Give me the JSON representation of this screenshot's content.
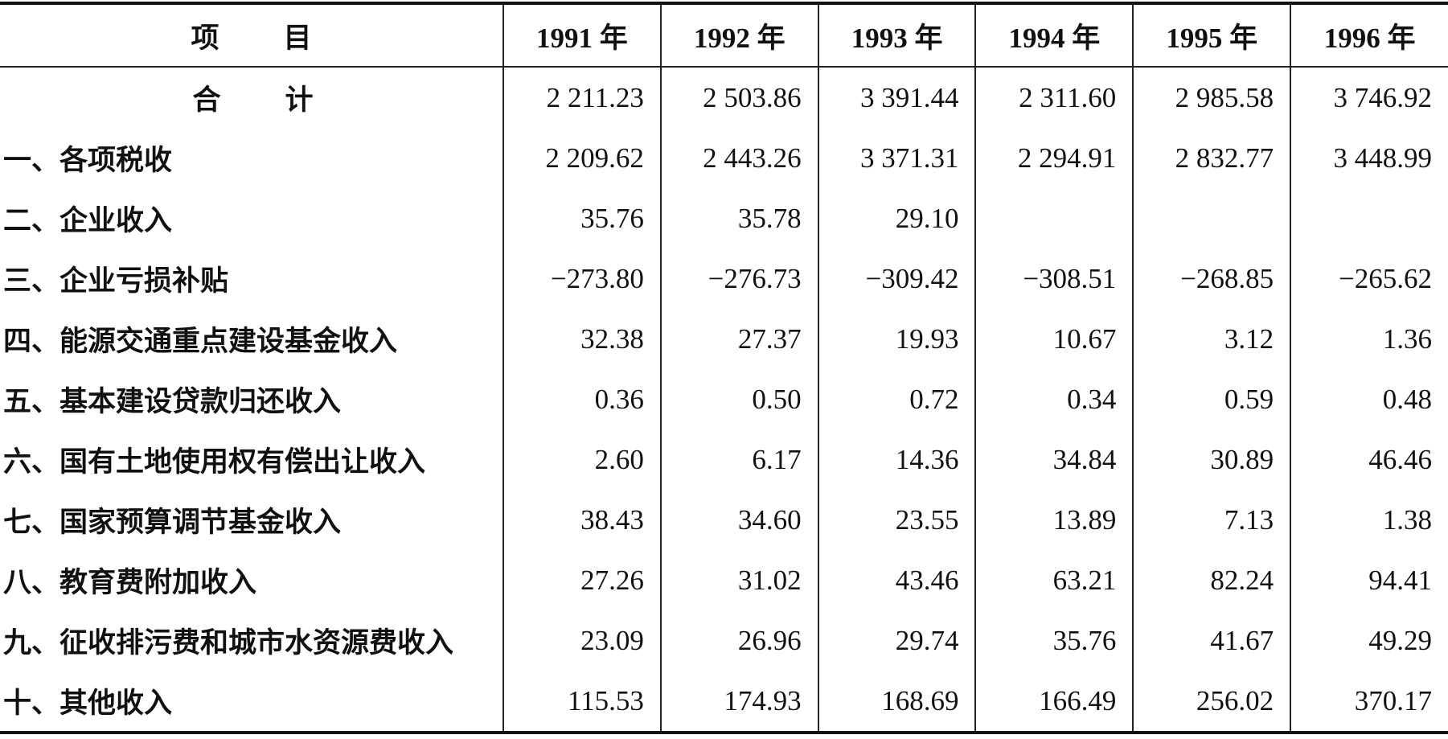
{
  "table": {
    "header": [
      "项目",
      "1991 年",
      "1992 年",
      "1993 年",
      "1994 年",
      "1995 年",
      "1996 年"
    ],
    "rows": [
      [
        "合计",
        "2 211.23",
        "2 503.86",
        "3 391.44",
        "2 311.60",
        "2 985.58",
        "3 746.92"
      ],
      [
        "一、各项税收",
        "2 209.62",
        "2 443.26",
        "3 371.31",
        "2 294.91",
        "2 832.77",
        "3 448.99"
      ],
      [
        "二、企业收入",
        "35.76",
        "35.78",
        "29.10",
        null,
        null,
        null
      ],
      [
        "三、企业亏损补贴",
        "−273.80",
        "−276.73",
        "−309.42",
        "−308.51",
        "−268.85",
        "−265.62"
      ],
      [
        "四、能源交通重点建设基金收入",
        "32.38",
        "27.37",
        "19.93",
        "10.67",
        "3.12",
        "1.36"
      ],
      [
        "五、基本建设贷款归还收入",
        "0.36",
        "0.50",
        "0.72",
        "0.34",
        "0.59",
        "0.48"
      ],
      [
        "六、国有土地使用权有偿出让收入",
        "2.60",
        "6.17",
        "14.36",
        "34.84",
        "30.89",
        "46.46"
      ],
      [
        "七、国家预算调节基金收入",
        "38.43",
        "34.60",
        "23.55",
        "13.89",
        "7.13",
        "1.38"
      ],
      [
        "八、教育费附加收入",
        "27.26",
        "31.02",
        "43.46",
        "63.21",
        "82.24",
        "94.41"
      ],
      [
        "九、征收排污费和城市水资源费收入",
        "23.09",
        "26.96",
        "29.74",
        "35.76",
        "41.67",
        "49.29"
      ],
      [
        "十、其他收入",
        "115.53",
        "174.93",
        "168.69",
        "166.49",
        "256.02",
        "370.17"
      ]
    ]
  }
}
